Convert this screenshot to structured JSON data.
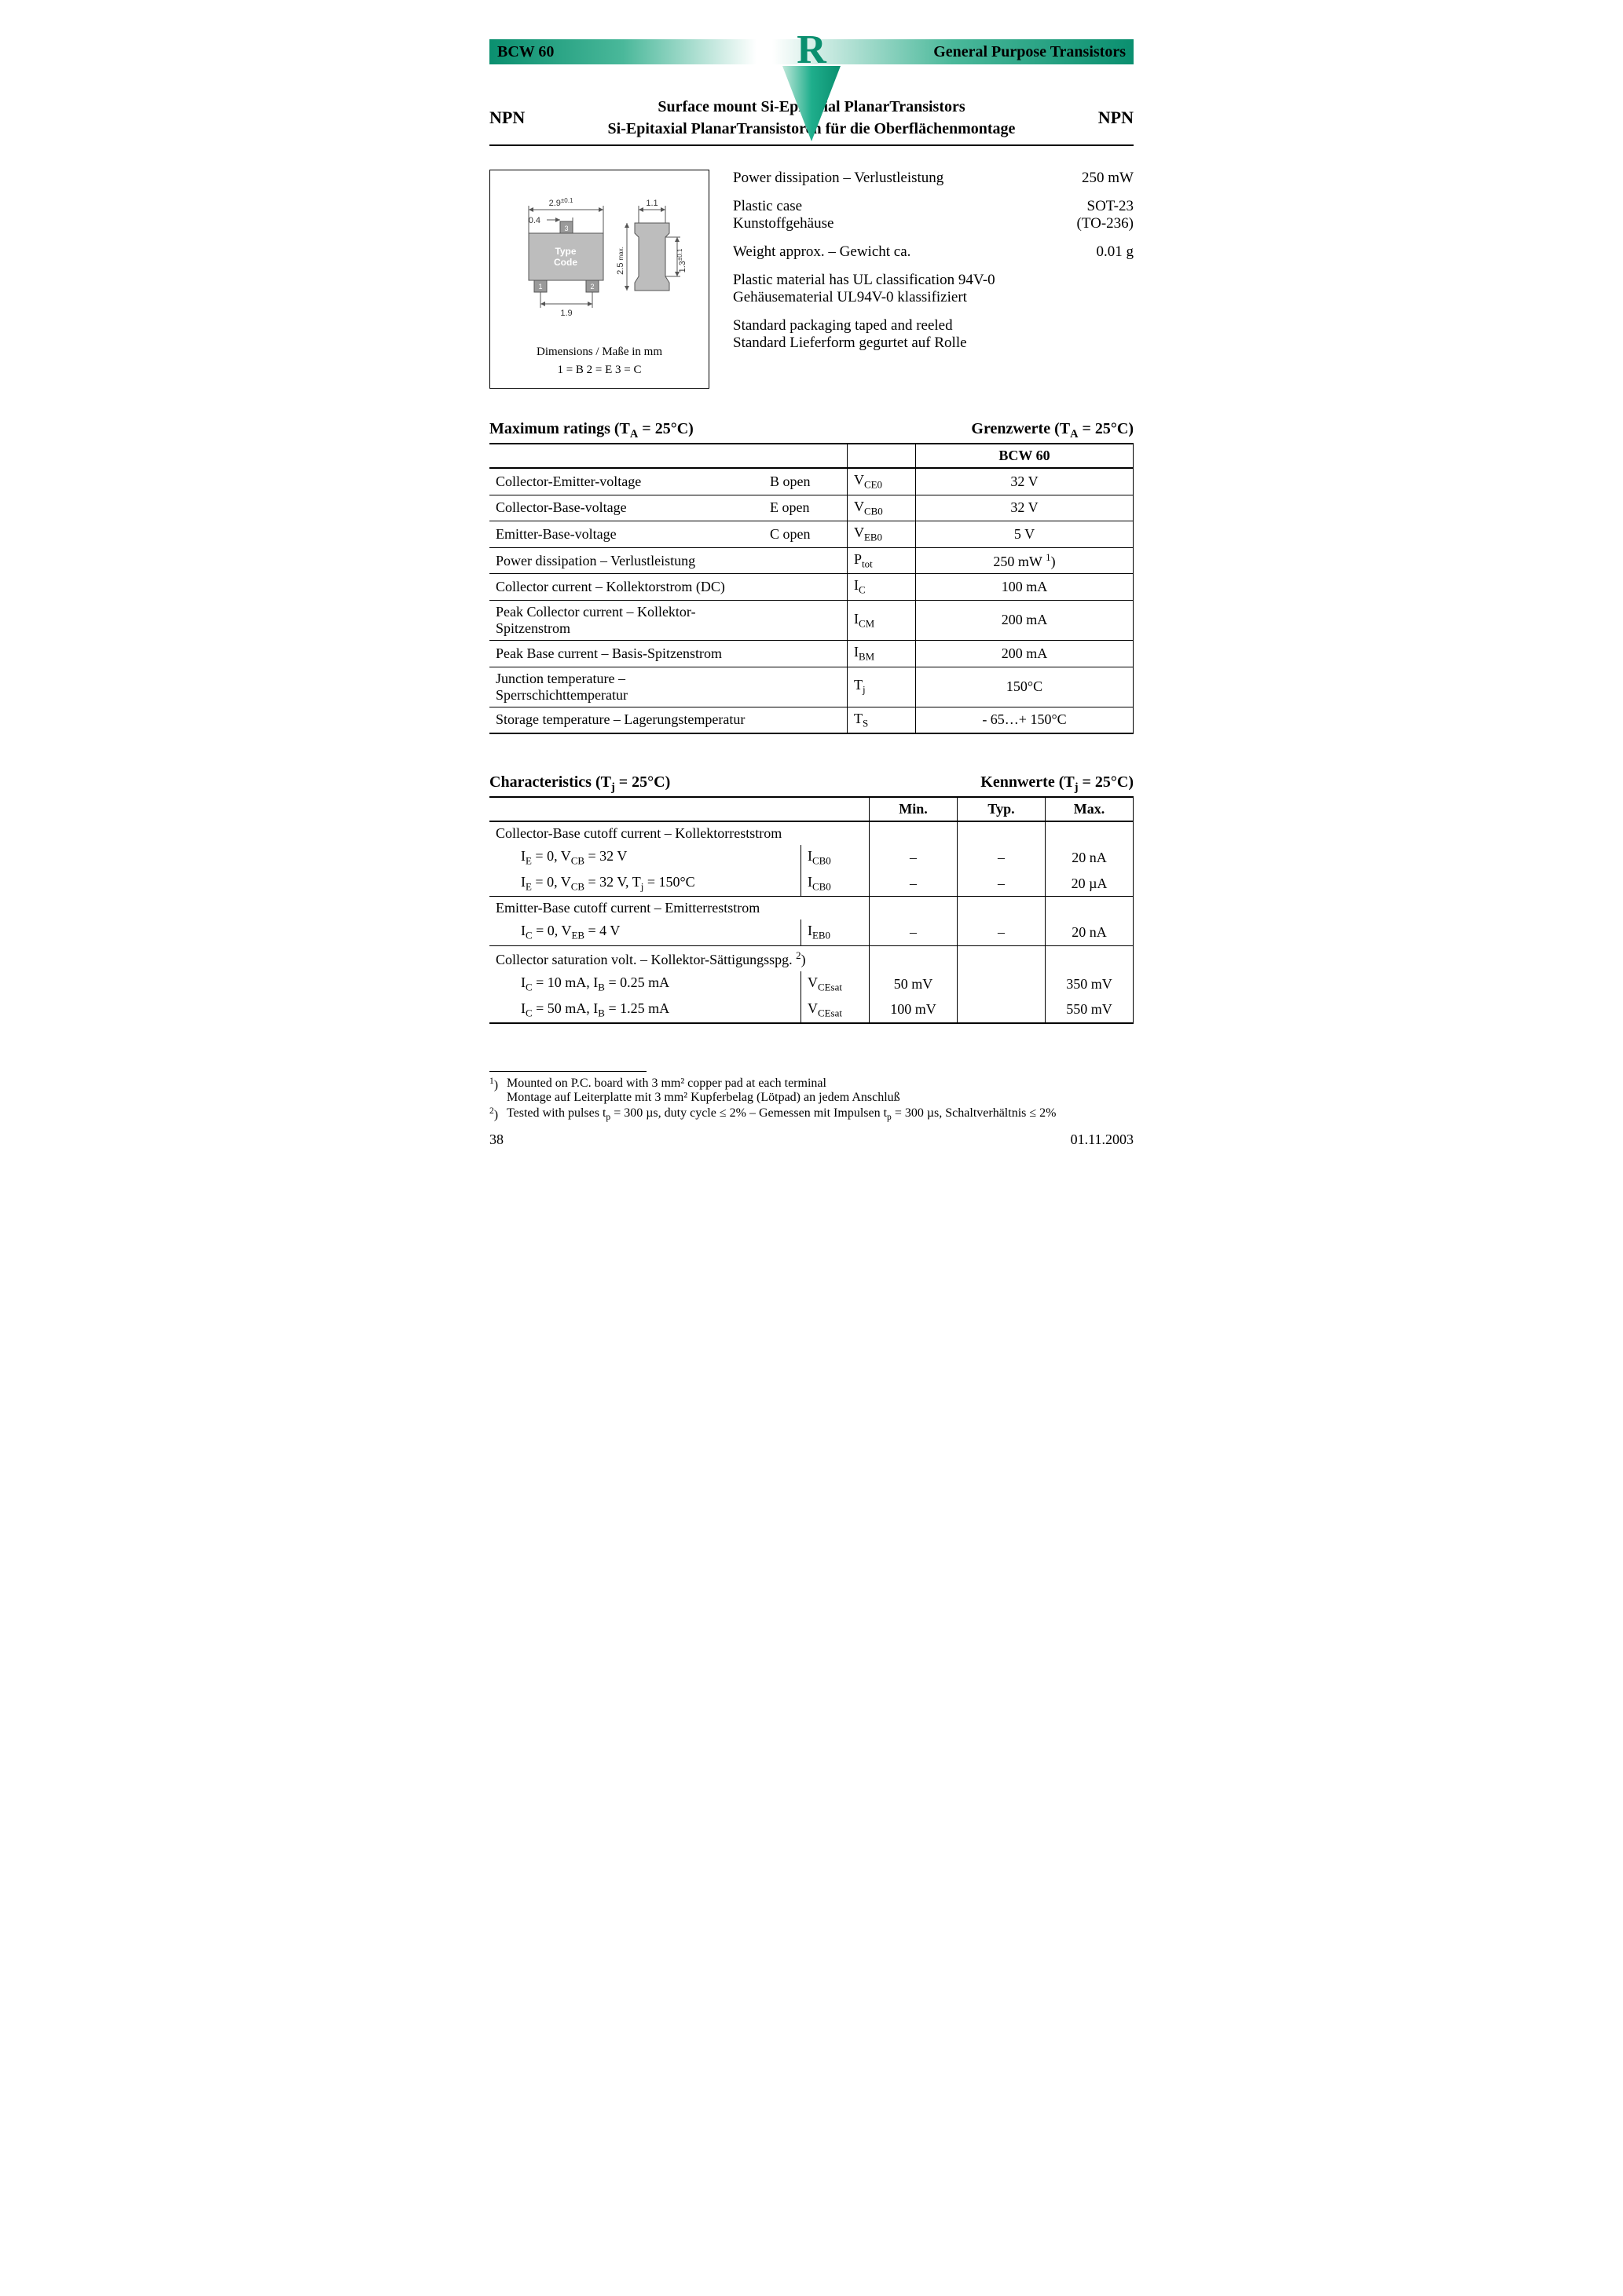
{
  "header": {
    "left": "BCW 60",
    "right": "General Purpose Transistors",
    "logo_letter": "R",
    "logo_color": "#0a8f6f",
    "triangle_color": "#1fae8c"
  },
  "title": {
    "npn": "NPN",
    "line1": "Surface mount Si-Epitaxial PlanarTransistors",
    "line2": "Si-Epitaxial PlanarTransistoren für die Oberflächenmontage"
  },
  "package": {
    "dims": {
      "w": "2.9",
      "w_tol": "±0.1",
      "pad_w": "0.4",
      "pitch": "1.9",
      "right_w": "1.1",
      "h": "2.5",
      "h_note": "max.",
      "t": "1.3",
      "t_tol": "±0.1"
    },
    "type_code": "Type\nCode",
    "pins": {
      "p1": "1",
      "p2": "2",
      "p3": "3"
    },
    "caption1": "Dimensions / Maße in mm",
    "caption2": "1 = B      2 = E      3 = C"
  },
  "props": {
    "pd_label": "Power dissipation – Verlustleistung",
    "pd_value": "250 mW",
    "case_en": "Plastic case",
    "case_de": "Kunstoffgehäuse",
    "case_val1": "SOT-23",
    "case_val2": "(TO-236)",
    "weight_label": "Weight approx. – Gewicht ca.",
    "weight_value": "0.01 g",
    "ul_en": "Plastic material has UL classification 94V-0",
    "ul_de": "Gehäusematerial UL94V-0 klassifiziert",
    "pack_en": "Standard packaging taped and reeled",
    "pack_de": "Standard Lieferform gegurtet auf Rolle"
  },
  "maxratings": {
    "head_left": "Maximum ratings (T",
    "head_left_sub": "A",
    "head_left_rest": " = 25°C)",
    "head_right": "Grenzwerte (T",
    "head_right_sub": "A",
    "head_right_rest": " = 25°C)",
    "col_device": "BCW 60",
    "rows": [
      {
        "desc": "Collector-Emitter-voltage",
        "cond": "B open",
        "sym": "V",
        "sub": "CE0",
        "val": "32 V"
      },
      {
        "desc": "Collector-Base-voltage",
        "cond": "E open",
        "sym": "V",
        "sub": "CB0",
        "val": "32 V"
      },
      {
        "desc": "Emitter-Base-voltage",
        "cond": "C open",
        "sym": "V",
        "sub": "EB0",
        "val": "5 V"
      },
      {
        "desc": "Power dissipation – Verlustleistung",
        "cond": "",
        "sym": "P",
        "sub": "tot",
        "val": "250 mW ",
        "sup": "1",
        "valtail": ")"
      },
      {
        "desc": "Collector current – Kollektorstrom (DC)",
        "cond": "",
        "sym": "I",
        "sub": "C",
        "val": "100 mA"
      },
      {
        "desc": "Peak Collector current – Kollektor-Spitzenstrom",
        "cond": "",
        "sym": "I",
        "sub": "CM",
        "val": "200 mA"
      },
      {
        "desc": "Peak Base current – Basis-Spitzenstrom",
        "cond": "",
        "sym": "I",
        "sub": "BM",
        "val": "200 mA"
      },
      {
        "desc": "Junction temperature – Sperrschichttemperatur",
        "cond": "",
        "sym": "T",
        "sub": "j",
        "val": "150°C"
      },
      {
        "desc": "Storage temperature – Lagerungstemperatur",
        "cond": "",
        "sym": "T",
        "sub": "S",
        "val": "- 65…+ 150°C"
      }
    ]
  },
  "characteristics": {
    "head_left": "Characteristics (T",
    "head_left_sub": "j",
    "head_left_rest": " = 25°C)",
    "head_right": "Kennwerte (T",
    "head_right_sub": "j",
    "head_right_rest": " = 25°C)",
    "cols": {
      "min": "Min.",
      "typ": "Typ.",
      "max": "Max."
    },
    "g1": {
      "title": "Collector-Base cutoff current – Kollektorreststrom",
      "rows": [
        {
          "cond_html": "I<sub>E</sub> = 0, V<sub>CB</sub> = 32 V",
          "sym": "I",
          "sub": "CB0",
          "min": "–",
          "typ": "–",
          "max": "20 nA"
        },
        {
          "cond_html": "I<sub>E</sub> = 0, V<sub>CB</sub> = 32 V, T<sub>j</sub> = 150°C",
          "sym": "I",
          "sub": "CB0",
          "min": "–",
          "typ": "–",
          "max": "20 µA"
        }
      ]
    },
    "g2": {
      "title": "Emitter-Base cutoff current – Emitterreststrom",
      "rows": [
        {
          "cond_html": "I<sub>C</sub> = 0, V<sub>EB</sub> = 4 V",
          "sym": "I",
          "sub": "EB0",
          "min": "–",
          "typ": "–",
          "max": "20 nA"
        }
      ]
    },
    "g3": {
      "title_html": "Collector saturation volt. – Kollektor-Sättigungsspg. <sup>2</sup>)",
      "rows": [
        {
          "cond_html": "I<sub>C</sub> = 10 mA, I<sub>B</sub> = 0.25 mA",
          "sym": "V",
          "sub": "CEsat",
          "min": "50 mV",
          "typ": "",
          "max": "350 mV"
        },
        {
          "cond_html": "I<sub>C</sub> = 50 mA, I<sub>B</sub> = 1.25 mA",
          "sym": "V",
          "sub": "CEsat",
          "min": "100 mV",
          "typ": "",
          "max": "550 mV"
        }
      ]
    }
  },
  "footnotes": {
    "f1a": "Mounted on P.C. board with 3 mm² copper pad at each terminal",
    "f1b": "Montage auf Leiterplatte mit 3 mm² Kupferbelag (Lötpad) an jedem Anschluß",
    "f2_html": "Tested with pulses t<sub>p</sub> = 300 µs, duty cycle ≤ 2%  –  Gemessen mit Impulsen t<sub>p</sub> = 300 µs, Schaltverhältnis ≤ 2%"
  },
  "footer": {
    "page": "38",
    "date": "01.11.2003"
  }
}
